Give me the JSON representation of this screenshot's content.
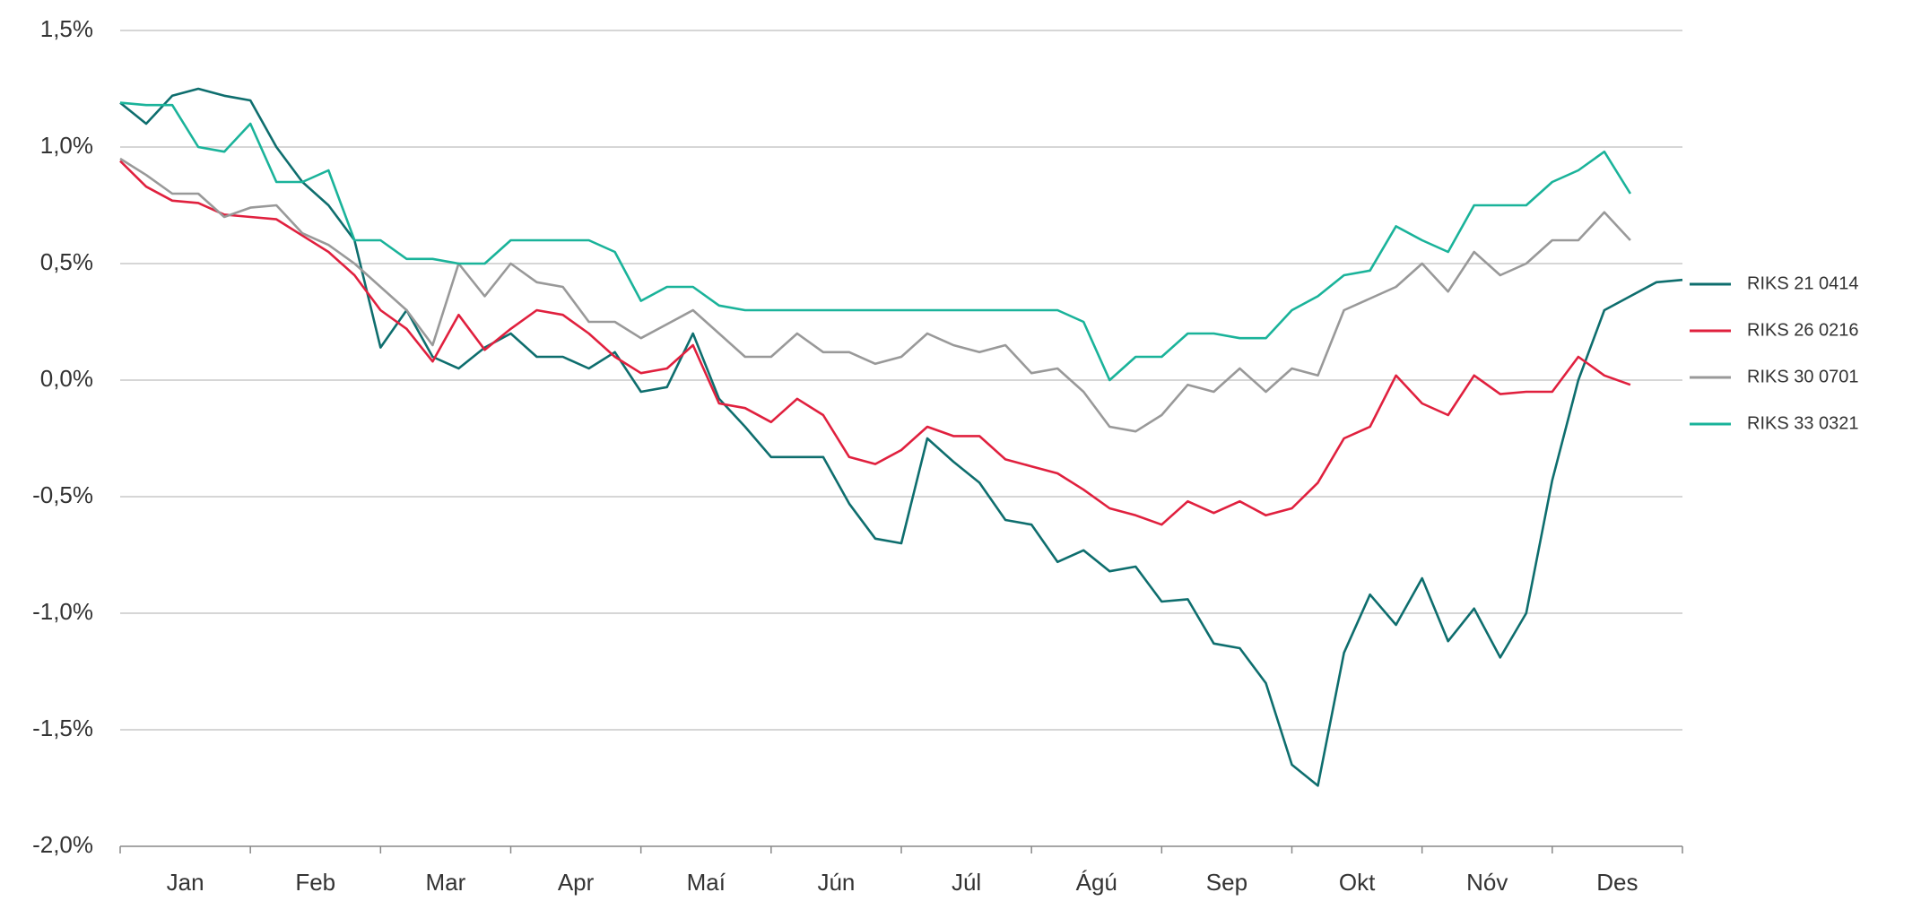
{
  "chart_data": {
    "type": "line",
    "x": [
      0,
      0.2,
      0.4,
      0.6,
      0.8,
      1,
      1.2,
      1.4,
      1.6,
      1.8,
      2,
      2.2,
      2.4,
      2.6,
      2.8,
      3,
      3.2,
      3.4,
      3.6,
      3.8,
      4,
      4.2,
      4.4,
      4.6,
      4.8,
      5,
      5.2,
      5.4,
      5.6,
      5.8,
      6,
      6.2,
      6.4,
      6.6,
      6.8,
      7,
      7.2,
      7.4,
      7.6,
      7.8,
      8,
      8.2,
      8.4,
      8.6,
      8.8,
      9,
      9.2,
      9.4,
      9.6,
      9.8,
      10,
      10.2,
      10.4,
      10.6,
      10.8,
      11,
      11.2,
      11.4,
      11.6,
      11.8,
      12
    ],
    "xlim": [
      0,
      12
    ],
    "categories": [
      "Jan",
      "Feb",
      "Mar",
      "Apr",
      "Maí",
      "Jún",
      "Júl",
      "Ágú",
      "Sep",
      "Okt",
      "Nóv",
      "Des"
    ],
    "ylim": [
      -2.0,
      1.5
    ],
    "yticks": [
      {
        "value": -2.0,
        "label": "-2,0%"
      },
      {
        "value": -1.5,
        "label": "-1,5%"
      },
      {
        "value": -1.0,
        "label": "-1,0%"
      },
      {
        "value": -0.5,
        "label": "-0,5%"
      },
      {
        "value": 0,
        "label": "0,0%"
      },
      {
        "value": 0.5,
        "label": "0,5%"
      },
      {
        "value": 1.0,
        "label": "1,0%"
      },
      {
        "value": 1.5,
        "label": "1,5%"
      }
    ],
    "grid": true,
    "legend": "right",
    "series": [
      {
        "name": "RIKS 21 0414",
        "color": "#0e6e6e",
        "values": [
          1.19,
          1.1,
          1.22,
          1.25,
          1.22,
          1.2,
          1.0,
          0.85,
          0.75,
          0.6,
          0.14,
          0.3,
          0.1,
          0.05,
          0.14,
          0.2,
          0.1,
          0.1,
          0.05,
          0.12,
          -0.05,
          -0.03,
          0.2,
          -0.08,
          -0.2,
          -0.33,
          -0.33,
          -0.33,
          -0.53,
          -0.68,
          -0.7,
          -0.25,
          -0.35,
          -0.44,
          -0.6,
          -0.62,
          -0.78,
          -0.73,
          -0.82,
          -0.8,
          -0.95,
          -0.94,
          -1.13,
          -1.15,
          -1.3,
          -1.65,
          -1.74,
          -1.17,
          -0.92,
          -1.05,
          -0.85,
          -1.12,
          -0.98,
          -1.19,
          -1.0,
          -0.43,
          0.0,
          0.3,
          0.36,
          0.42,
          0.43
        ]
      },
      {
        "name": "RIKS 26 0216",
        "color": "#e0203e",
        "values": [
          0.94,
          0.83,
          0.77,
          0.76,
          0.71,
          0.7,
          0.69,
          0.62,
          0.55,
          0.45,
          0.3,
          0.22,
          0.08,
          0.28,
          0.13,
          0.22,
          0.3,
          0.28,
          0.2,
          0.1,
          0.03,
          0.05,
          0.15,
          -0.1,
          -0.12,
          -0.18,
          -0.08,
          -0.15,
          -0.33,
          -0.36,
          -0.3,
          -0.2,
          -0.24,
          -0.24,
          -0.34,
          -0.37,
          -0.4,
          -0.47,
          -0.55,
          -0.58,
          -0.62,
          -0.52,
          -0.57,
          -0.52,
          -0.58,
          -0.55,
          -0.44,
          -0.25,
          -0.2,
          0.02,
          -0.1,
          -0.15,
          0.02,
          -0.06,
          -0.05,
          -0.05,
          0.1,
          0.02,
          -0.02,
          null,
          null
        ]
      },
      {
        "name": "RIKS 30 0701",
        "color": "#999999",
        "values": [
          0.95,
          0.88,
          0.8,
          0.8,
          0.7,
          0.74,
          0.75,
          0.63,
          0.58,
          0.5,
          0.4,
          0.3,
          0.15,
          0.5,
          0.36,
          0.5,
          0.42,
          0.4,
          0.25,
          0.25,
          0.18,
          0.24,
          0.3,
          0.2,
          0.1,
          0.1,
          0.2,
          0.12,
          0.12,
          0.07,
          0.1,
          0.2,
          0.15,
          0.12,
          0.15,
          0.03,
          0.05,
          -0.05,
          -0.2,
          -0.22,
          -0.15,
          -0.02,
          -0.05,
          0.05,
          -0.05,
          0.05,
          0.02,
          0.3,
          0.35,
          0.4,
          0.5,
          0.38,
          0.55,
          0.45,
          0.5,
          0.6,
          0.6,
          0.72,
          0.6,
          null,
          null
        ]
      },
      {
        "name": "RIKS 33 0321",
        "color": "#1ab39a",
        "values": [
          1.19,
          1.18,
          1.18,
          1.0,
          0.98,
          1.1,
          0.85,
          0.85,
          0.9,
          0.6,
          0.6,
          0.52,
          0.52,
          0.5,
          0.5,
          0.6,
          0.6,
          0.6,
          0.6,
          0.55,
          0.34,
          0.4,
          0.4,
          0.32,
          0.3,
          0.3,
          0.3,
          0.3,
          0.3,
          0.3,
          0.3,
          0.3,
          0.3,
          0.3,
          0.3,
          0.3,
          0.3,
          0.25,
          0.0,
          0.1,
          0.1,
          0.2,
          0.2,
          0.18,
          0.18,
          0.3,
          0.36,
          0.45,
          0.47,
          0.66,
          0.6,
          0.55,
          0.75,
          0.75,
          0.75,
          0.85,
          0.9,
          0.98,
          0.8,
          null,
          null
        ]
      }
    ]
  }
}
